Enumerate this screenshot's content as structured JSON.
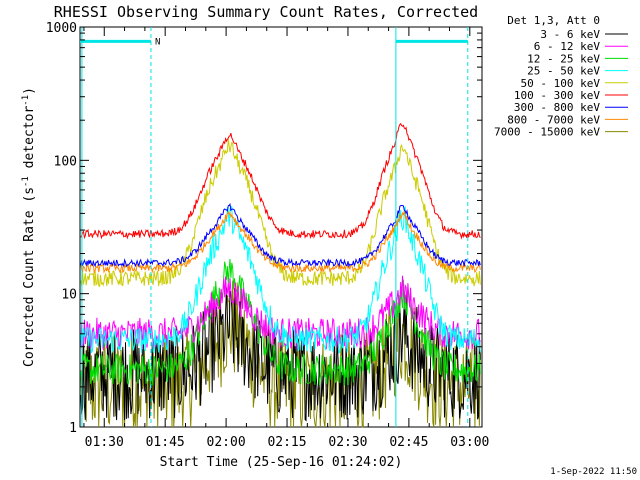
{
  "chart_data": {
    "type": "line",
    "title": "RHESSI Observing Summary Count Rates, Corrected",
    "xlabel": "Start Time (25-Sep-16 01:24:02)",
    "ylabel_main": "Corrected Count Rate (s",
    "ylabel_sup1": "-1",
    "ylabel_mid": " detector",
    "ylabel_sup2": "-1",
    "ylabel_end": ")",
    "yscale": "log",
    "ylim": [
      1,
      1000
    ],
    "xlim_minutes": [
      84.03,
      183.0
    ],
    "x_ticks": [
      {
        "label": "01:30",
        "minutes": 90
      },
      {
        "label": "01:45",
        "minutes": 105
      },
      {
        "label": "02:00",
        "minutes": 120
      },
      {
        "label": "02:15",
        "minutes": 135
      },
      {
        "label": "02:30",
        "minutes": 150
      },
      {
        "label": "02:45",
        "minutes": 165
      },
      {
        "label": "03:00",
        "minutes": 180
      }
    ],
    "y_ticks": [
      {
        "label": "1",
        "value": 1
      },
      {
        "label": "10",
        "value": 10
      },
      {
        "label": "100",
        "value": 100
      },
      {
        "label": "1000",
        "value": 1000
      }
    ],
    "legend_header": "Det 1,3, Att 0",
    "series": [
      {
        "name": "3 - 6 keV",
        "color": "#000000",
        "base": 2.5,
        "peak1": 5.5,
        "peak2": 5.0,
        "noise": 0.35
      },
      {
        "name": "6 - 12 keV",
        "color": "#ff00ff",
        "base": 5.0,
        "peak1": 11.0,
        "peak2": 10.5,
        "noise": 0.12
      },
      {
        "name": "12 - 25 keV",
        "color": "#00dd00",
        "base": 2.7,
        "peak1": 15.0,
        "peak2": 10.0,
        "noise": 0.12
      },
      {
        "name": "25 - 50 keV",
        "color": "#00ffff",
        "base": 4.5,
        "peak1": 38.0,
        "peak2": 38.0,
        "noise": 0.1
      },
      {
        "name": "50 - 100 keV",
        "color": "#cccc00",
        "base": 13.0,
        "peak1": 128.0,
        "peak2": 125.0,
        "noise": 0.06
      },
      {
        "name": "100 - 300 keV",
        "color": "#ff0000",
        "base": 28.0,
        "peak1": 155.0,
        "peak2": 190.0,
        "noise": 0.03
      },
      {
        "name": "300 - 800 keV",
        "color": "#0000ff",
        "base": 17.0,
        "peak1": 45.0,
        "peak2": 45.0,
        "noise": 0.025
      },
      {
        "name": "800 - 7000 keV",
        "color": "#ff8800",
        "base": 15.5,
        "peak1": 40.0,
        "peak2": 40.0,
        "noise": 0.03
      },
      {
        "name": "7000 - 15000 keV",
        "color": "#888800",
        "base": 2.0,
        "peak1": 6.0,
        "peak2": 5.0,
        "noise": 0.4
      }
    ],
    "peak_times_minutes": [
      120.8,
      163.5
    ],
    "night_intervals_minutes": [
      [
        84.03,
        101.5
      ],
      [
        161.8,
        179.5
      ]
    ],
    "night_marker_level": 780,
    "saa_label": "N",
    "vertical_dashed_minutes": [
      101.5,
      179.5
    ],
    "vertical_solid_minutes": [
      84.5,
      161.8
    ],
    "timestamp": "1-Sep-2022 11:50"
  }
}
